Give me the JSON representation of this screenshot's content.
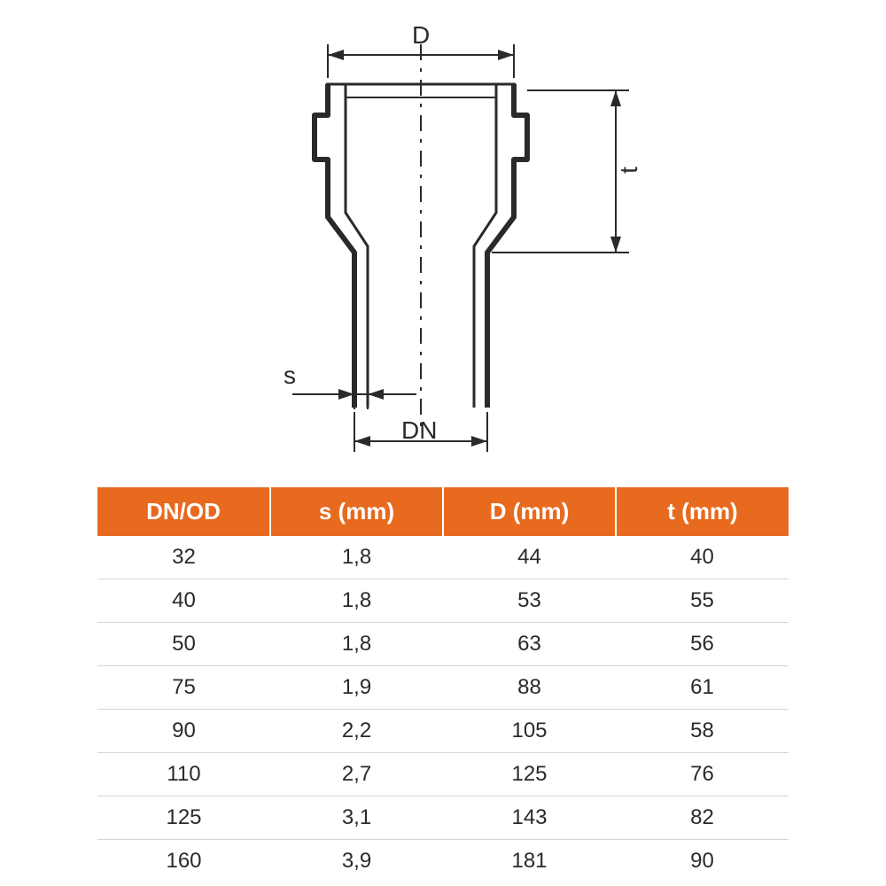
{
  "diagram": {
    "labels": {
      "D": "D",
      "t": "t",
      "s": "s",
      "DN": "DN"
    },
    "stroke": "#2a2a2a",
    "stroke_width_main": 3,
    "stroke_width_outline": 6,
    "centerline_dash": "18 9 4 9"
  },
  "table": {
    "header_bg": "#e86a1f",
    "header_fg": "#ffffff",
    "row_border": "#d6d6d6",
    "cell_fg": "#2a2a2a",
    "columns": [
      "DN/OD",
      "s (mm)",
      "D (mm)",
      "t (mm)"
    ],
    "rows": [
      [
        "32",
        "1,8",
        "44",
        "40"
      ],
      [
        "40",
        "1,8",
        "53",
        "55"
      ],
      [
        "50",
        "1,8",
        "63",
        "56"
      ],
      [
        "75",
        "1,9",
        "88",
        "61"
      ],
      [
        "90",
        "2,2",
        "105",
        "58"
      ],
      [
        "110",
        "2,7",
        "125",
        "76"
      ],
      [
        "125",
        "3,1",
        "143",
        "82"
      ],
      [
        "160",
        "3,9",
        "181",
        "90"
      ]
    ],
    "col_widths_pct": [
      25,
      25,
      25,
      25
    ]
  }
}
